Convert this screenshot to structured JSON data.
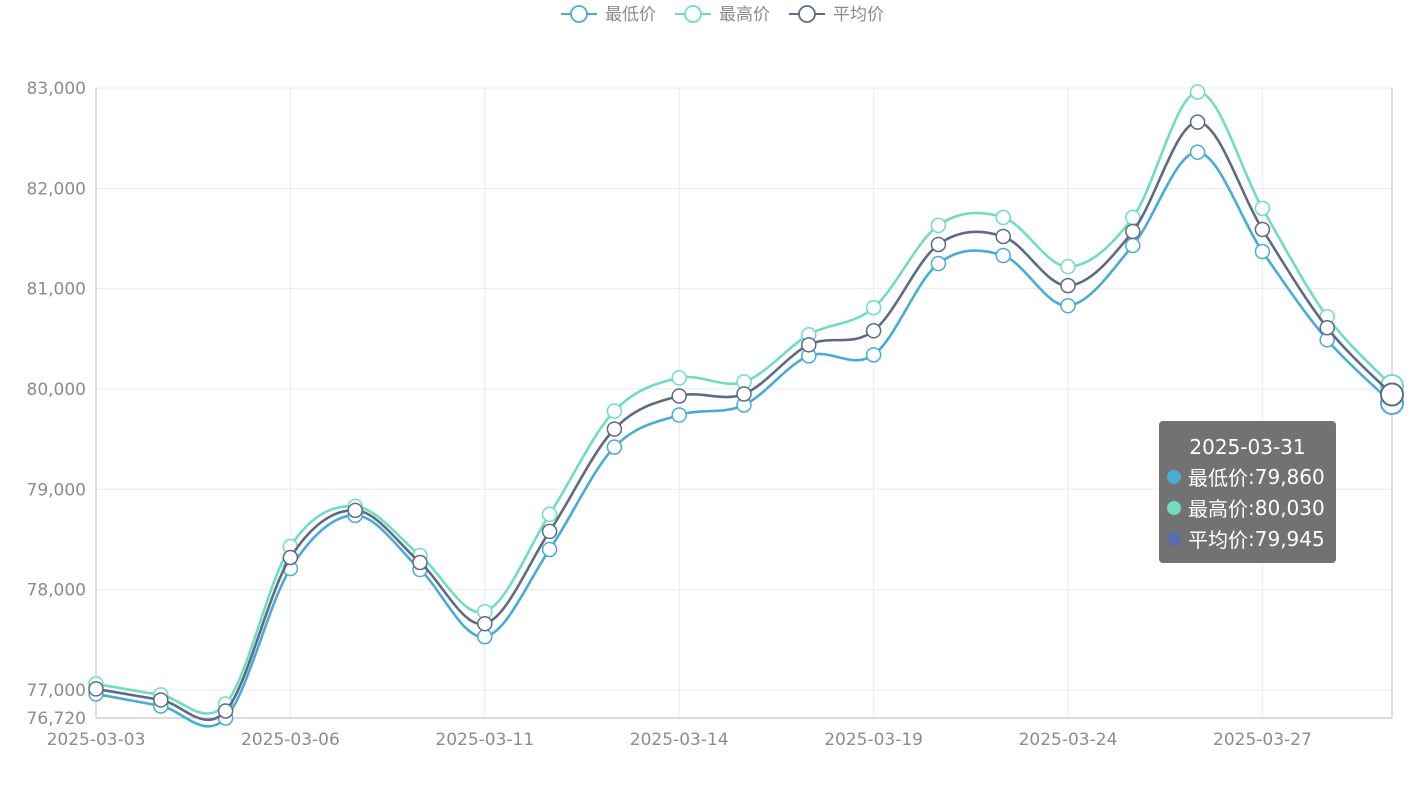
{
  "chart_data": {
    "type": "line",
    "title": "",
    "xlabel": "",
    "ylabel": "",
    "x": [
      "2025-03-03",
      "2025-03-04",
      "2025-03-05",
      "2025-03-06",
      "2025-03-07",
      "2025-03-10",
      "2025-03-11",
      "2025-03-12",
      "2025-03-13",
      "2025-03-14",
      "2025-03-17",
      "2025-03-18",
      "2025-03-19",
      "2025-03-20",
      "2025-03-21",
      "2025-03-24",
      "2025-03-25",
      "2025-03-26",
      "2025-03-27",
      "2025-03-28",
      "2025-03-31"
    ],
    "x_tick_labels": [
      "2025-03-03",
      "2025-03-06",
      "2025-03-11",
      "2025-03-14",
      "2025-03-19",
      "2025-03-24",
      "2025-03-27"
    ],
    "ylim": [
      76720,
      83000
    ],
    "y_ticks": [
      77000,
      78000,
      79000,
      80000,
      81000,
      82000,
      83000
    ],
    "y_tick_labels": [
      "77,000",
      "78,000",
      "79,000",
      "80,000",
      "81,000",
      "82,000",
      "83,000"
    ],
    "y_min_label": "76,720",
    "grid": true,
    "legend_position": "top-center",
    "smooth": true,
    "series": [
      {
        "name": "最低价",
        "color": "#4aabd5",
        "values": [
          76960,
          76840,
          76720,
          78210,
          78740,
          78200,
          77530,
          78400,
          79420,
          79740,
          79840,
          80330,
          80340,
          81250,
          81330,
          80830,
          81430,
          82360,
          81370,
          80490,
          79860
        ]
      },
      {
        "name": "最高价",
        "color": "#72dcc0",
        "values": [
          77060,
          76950,
          76860,
          78430,
          78830,
          78340,
          77780,
          78750,
          79780,
          80110,
          80070,
          80540,
          80810,
          81630,
          81710,
          81220,
          81710,
          82960,
          81800,
          80720,
          80030
        ]
      },
      {
        "name": "平均价",
        "color": "#5e6a86",
        "values": [
          77010,
          76900,
          76790,
          78320,
          78790,
          78270,
          77660,
          78580,
          79600,
          79930,
          79950,
          80440,
          80580,
          81440,
          81520,
          81030,
          81570,
          82660,
          81590,
          80610,
          79945
        ]
      }
    ],
    "tooltip": {
      "date": "2025-03-31",
      "separator": ": ",
      "rows": [
        {
          "name": "最低价",
          "value": "79,860",
          "color": "#4aabd5"
        },
        {
          "name": "最高价",
          "value": "80,030",
          "color": "#72dcc0"
        },
        {
          "name": "平均价",
          "value": "79,945",
          "color": "#5b6bab"
        }
      ]
    }
  }
}
